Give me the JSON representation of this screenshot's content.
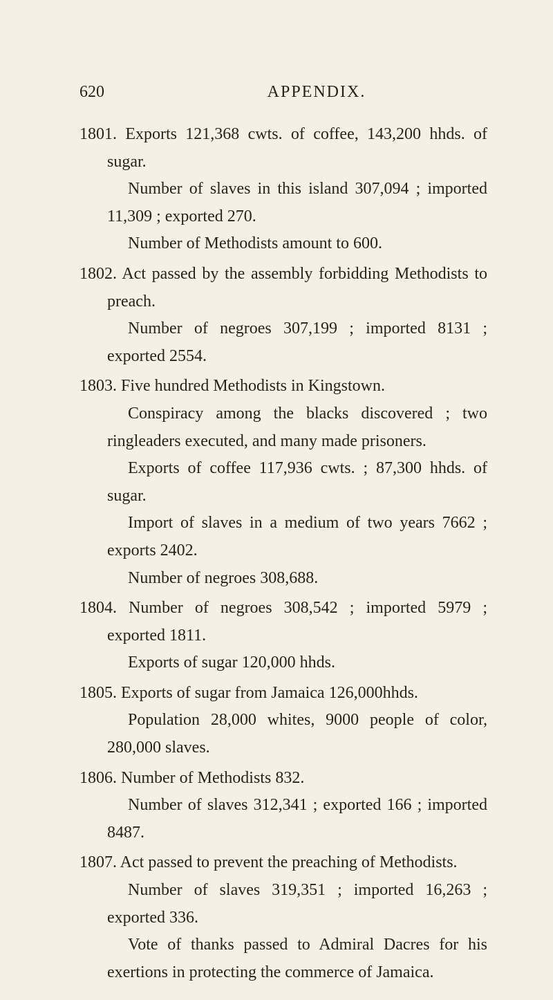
{
  "page": {
    "number": "620",
    "header": "APPENDIX.",
    "background_color": "#f5f0e6",
    "text_color": "#2a2418",
    "fontsize": 24,
    "font_family": "Times New Roman"
  },
  "entries": [
    {
      "year_line": "1801. Exports 121,368 cwts. of coffee, 143,200 hhds. of sugar.",
      "sub": [
        "Number of slaves in this island 307,094 ; imported 11,309 ; exported 270.",
        "Number of Methodists amount to 600."
      ]
    },
    {
      "year_line": "1802. Act passed by the assembly forbidding Methodists to preach.",
      "sub": [
        "Number of negroes 307,199 ; imported 8131 ; exported 2554."
      ]
    },
    {
      "year_line": "1803. Five hundred Methodists in Kingstown.",
      "sub": [
        "Conspiracy among the blacks discovered ; two ringleaders executed, and many made prisoners.",
        "Exports of coffee 117,936 cwts. ; 87,300 hhds. of sugar.",
        "Import of slaves in a medium of two years 7662 ; exports 2402.",
        "Number of negroes 308,688."
      ]
    },
    {
      "year_line": "1804. Number of negroes 308,542 ; imported 5979 ; exported 1811.",
      "sub": [
        "Exports of sugar 120,000 hhds."
      ]
    },
    {
      "year_line": "1805. Exports of sugar from Jamaica 126,000hhds.",
      "sub": [
        "Population 28,000 whites, 9000 people of color, 280,000 slaves."
      ]
    },
    {
      "year_line": "1806. Number of Methodists 832.",
      "sub": [
        "Number of slaves 312,341 ; exported 166 ; imported 8487."
      ]
    },
    {
      "year_line": "1807. Act passed to prevent the preaching of Methodists.",
      "sub": [
        "Number of slaves 319,351 ; imported 16,263 ; exported 336.",
        "Vote of thanks passed to Admiral Dacres for his exertions in protecting the commerce of Jamaica."
      ]
    }
  ]
}
